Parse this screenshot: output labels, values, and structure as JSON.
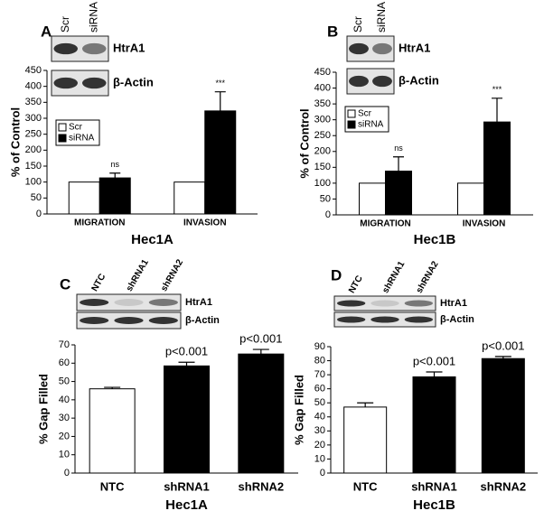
{
  "chart_data": [
    {
      "type": "bar",
      "panel": "A",
      "blot": {
        "lanes": [
          "Scr",
          "siRNA"
        ],
        "bands": [
          "HtrA1",
          "β-Actin"
        ]
      },
      "y_label": "% of Control",
      "x_label": "Hec1A",
      "categories": [
        "MIGRATION",
        "INVASION"
      ],
      "series": [
        {
          "name": "Scr",
          "color": "#ffffff",
          "values": [
            100,
            100
          ]
        },
        {
          "name": "siRNA",
          "color": "#000000",
          "values": [
            113,
            323
          ],
          "errors": [
            15,
            60
          ]
        }
      ],
      "annotations": [
        "ns",
        "***"
      ],
      "ylim": [
        0,
        450
      ],
      "yticks": [
        0,
        50,
        100,
        150,
        200,
        250,
        300,
        350,
        400,
        450
      ],
      "legend": "upper left"
    },
    {
      "type": "bar",
      "panel": "B",
      "blot": {
        "lanes": [
          "Scr",
          "siRNA"
        ],
        "bands": [
          "HtrA1",
          "β-Actin"
        ]
      },
      "y_label": "% of Control",
      "x_label": "Hec1B",
      "categories": [
        "MIGRATION",
        "INVASION"
      ],
      "series": [
        {
          "name": "Scr",
          "color": "#ffffff",
          "values": [
            100,
            100
          ]
        },
        {
          "name": "siRNA",
          "color": "#000000",
          "values": [
            138,
            293
          ],
          "errors": [
            45,
            75
          ]
        }
      ],
      "annotations": [
        "ns",
        "***"
      ],
      "ylim": [
        0,
        450
      ],
      "yticks": [
        0,
        50,
        100,
        150,
        200,
        250,
        300,
        350,
        400,
        450
      ],
      "legend": "upper left"
    },
    {
      "type": "bar",
      "panel": "C",
      "blot": {
        "lanes": [
          "NTC",
          "shRNA1",
          "shRNA2"
        ],
        "bands": [
          "HtrA1",
          "β-Actin"
        ]
      },
      "y_label": "% Gap Filled",
      "x_label": "Hec1A",
      "categories": [
        "NTC",
        "shRNA1",
        "shRNA2"
      ],
      "values": [
        46,
        58.5,
        65
      ],
      "errors": [
        0.8,
        2,
        2.5
      ],
      "colors": [
        "#ffffff",
        "#000000",
        "#000000"
      ],
      "annotations": [
        null,
        "p<0.001",
        "p<0.001"
      ],
      "ylim": [
        0,
        70
      ],
      "yticks": [
        0,
        10,
        20,
        30,
        40,
        50,
        60,
        70
      ]
    },
    {
      "type": "bar",
      "panel": "D",
      "blot": {
        "lanes": [
          "NTC",
          "shRNA1",
          "shRNA2"
        ],
        "bands": [
          "HtrA1",
          "β-Actin"
        ]
      },
      "y_label": "% Gap Filled",
      "x_label": "Hec1B",
      "categories": [
        "NTC",
        "shRNA1",
        "shRNA2"
      ],
      "values": [
        47,
        68.5,
        81.5
      ],
      "errors": [
        3,
        3.5,
        1.5
      ],
      "colors": [
        "#ffffff",
        "#000000",
        "#000000"
      ],
      "annotations": [
        null,
        "p<0.001",
        "p<0.001"
      ],
      "ylim": [
        0,
        90
      ],
      "yticks": [
        0,
        10,
        20,
        30,
        40,
        50,
        60,
        70,
        80,
        90
      ]
    }
  ]
}
